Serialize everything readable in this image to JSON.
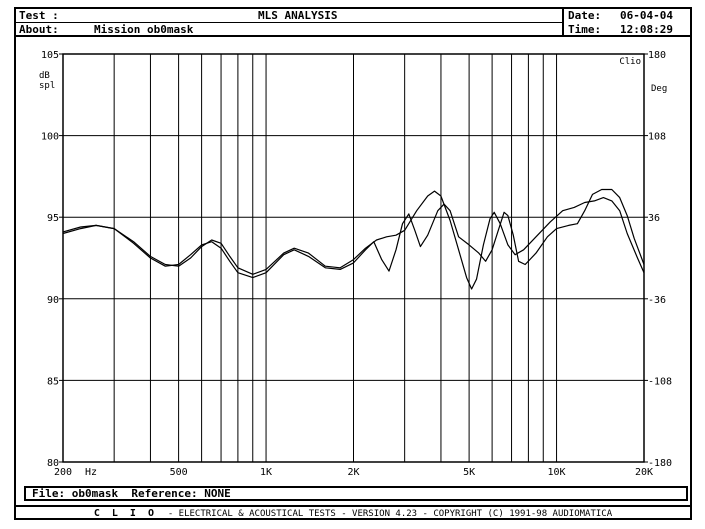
{
  "header": {
    "test_label": "Test :",
    "title": "MLS ANALYSIS",
    "about_label": "About:",
    "about_value": "Mission ob0mask",
    "date_label": "Date:",
    "date_value": "06-04-04",
    "time_label": "Time:",
    "time_value": "12:08:29"
  },
  "footer": {
    "file_label": "File:",
    "file_value": "ob0mask",
    "reference_label": "Reference:",
    "reference_value": "NONE",
    "brand": "C L I O",
    "copyright": "- ELECTRICAL & ACOUSTICAL TESTS - VERSION 4.23 - COPYRIGHT (C) 1991-98 AUDIOMATICA"
  },
  "colors": {
    "ink": "#000000",
    "background": "#ffffff"
  },
  "chart_data": {
    "type": "line",
    "corner_label": "Clio",
    "y_unit_label_line1": "dB",
    "y_unit_label_line2": "spl",
    "y2_unit_label": "Deg",
    "x_scale": "log",
    "xlim": [
      200,
      20000
    ],
    "ylim": [
      80,
      105
    ],
    "y2lim": [
      -180,
      180
    ],
    "grid": true,
    "x_tick_labels": [
      {
        "value": 200,
        "label": "200"
      },
      {
        "value": 500,
        "label": "500"
      },
      {
        "value": 1000,
        "label": "1K"
      },
      {
        "value": 2000,
        "label": "2K"
      },
      {
        "value": 5000,
        "label": "5K"
      },
      {
        "value": 10000,
        "label": "10K"
      },
      {
        "value": 20000,
        "label": "20K"
      }
    ],
    "x_unit_label": "Hz",
    "x_grid": [
      300,
      400,
      500,
      600,
      700,
      800,
      900,
      1000,
      2000,
      3000,
      4000,
      5000,
      6000,
      7000,
      8000,
      9000,
      10000
    ],
    "y_ticks": [
      80,
      85,
      90,
      95,
      100,
      105
    ],
    "y2_ticks": [
      -180,
      -108,
      -36,
      36,
      108,
      180
    ],
    "series": [
      {
        "points": [
          [
            200,
            94.1
          ],
          [
            230,
            94.4
          ],
          [
            260,
            94.5
          ],
          [
            300,
            94.3
          ],
          [
            350,
            93.5
          ],
          [
            400,
            92.6
          ],
          [
            450,
            92.1
          ],
          [
            500,
            92.0
          ],
          [
            550,
            92.5
          ],
          [
            600,
            93.2
          ],
          [
            650,
            93.6
          ],
          [
            700,
            93.4
          ],
          [
            750,
            92.6
          ],
          [
            800,
            91.9
          ],
          [
            900,
            91.5
          ],
          [
            1000,
            91.8
          ],
          [
            1150,
            92.8
          ],
          [
            1250,
            93.1
          ],
          [
            1400,
            92.8
          ],
          [
            1600,
            92.0
          ],
          [
            1800,
            91.9
          ],
          [
            2000,
            92.4
          ],
          [
            2200,
            93.1
          ],
          [
            2400,
            93.6
          ],
          [
            2600,
            93.8
          ],
          [
            2800,
            93.9
          ],
          [
            3000,
            94.2
          ],
          [
            3300,
            95.4
          ],
          [
            3600,
            96.3
          ],
          [
            3800,
            96.6
          ],
          [
            4000,
            96.3
          ],
          [
            4300,
            94.8
          ],
          [
            4600,
            93.0
          ],
          [
            4900,
            91.3
          ],
          [
            5100,
            90.6
          ],
          [
            5300,
            91.2
          ],
          [
            5600,
            93.3
          ],
          [
            5900,
            94.9
          ],
          [
            6100,
            95.3
          ],
          [
            6400,
            94.6
          ],
          [
            6800,
            93.3
          ],
          [
            7200,
            92.7
          ],
          [
            7700,
            93.0
          ],
          [
            8500,
            93.8
          ],
          [
            9500,
            94.7
          ],
          [
            10500,
            95.4
          ],
          [
            11500,
            95.6
          ],
          [
            12500,
            95.9
          ],
          [
            13500,
            96.0
          ],
          [
            14500,
            96.2
          ],
          [
            15500,
            96.0
          ],
          [
            16500,
            95.4
          ],
          [
            17500,
            94.0
          ],
          [
            19000,
            92.5
          ],
          [
            20000,
            91.6
          ]
        ]
      },
      {
        "points": [
          [
            200,
            94.0
          ],
          [
            230,
            94.3
          ],
          [
            260,
            94.5
          ],
          [
            300,
            94.3
          ],
          [
            350,
            93.4
          ],
          [
            400,
            92.5
          ],
          [
            450,
            92.0
          ],
          [
            500,
            92.1
          ],
          [
            550,
            92.7
          ],
          [
            600,
            93.3
          ],
          [
            650,
            93.5
          ],
          [
            700,
            93.1
          ],
          [
            750,
            92.3
          ],
          [
            800,
            91.6
          ],
          [
            900,
            91.3
          ],
          [
            1000,
            91.6
          ],
          [
            1150,
            92.7
          ],
          [
            1250,
            93.0
          ],
          [
            1400,
            92.6
          ],
          [
            1600,
            91.9
          ],
          [
            1800,
            91.8
          ],
          [
            2000,
            92.2
          ],
          [
            2200,
            93.0
          ],
          [
            2350,
            93.5
          ],
          [
            2500,
            92.4
          ],
          [
            2650,
            91.7
          ],
          [
            2800,
            93.0
          ],
          [
            2950,
            94.6
          ],
          [
            3100,
            95.2
          ],
          [
            3250,
            94.2
          ],
          [
            3400,
            93.2
          ],
          [
            3600,
            93.9
          ],
          [
            3900,
            95.4
          ],
          [
            4100,
            95.8
          ],
          [
            4300,
            95.4
          ],
          [
            4600,
            93.8
          ],
          [
            5000,
            93.3
          ],
          [
            5400,
            92.8
          ],
          [
            5700,
            92.3
          ],
          [
            6000,
            93.0
          ],
          [
            6300,
            94.2
          ],
          [
            6600,
            95.3
          ],
          [
            6800,
            95.1
          ],
          [
            7100,
            93.9
          ],
          [
            7400,
            92.3
          ],
          [
            7800,
            92.1
          ],
          [
            8500,
            92.8
          ],
          [
            9300,
            93.8
          ],
          [
            10000,
            94.3
          ],
          [
            11000,
            94.5
          ],
          [
            11800,
            94.6
          ],
          [
            12500,
            95.4
          ],
          [
            13300,
            96.4
          ],
          [
            14300,
            96.7
          ],
          [
            15500,
            96.7
          ],
          [
            16500,
            96.2
          ],
          [
            17500,
            95.1
          ],
          [
            18500,
            93.7
          ],
          [
            20000,
            92.1
          ]
        ]
      }
    ]
  }
}
